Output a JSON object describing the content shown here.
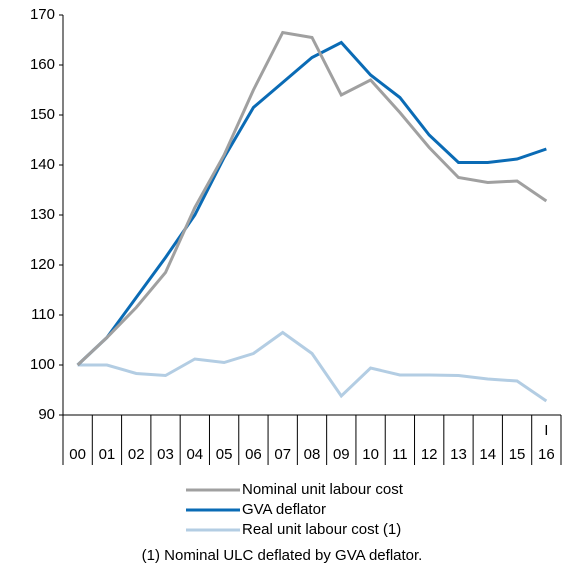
{
  "chart_data": {
    "type": "line",
    "categories": [
      "00",
      "01",
      "02",
      "03",
      "04",
      "05",
      "06",
      "07",
      "08",
      "09",
      "10",
      "11",
      "12",
      "13",
      "14",
      "15",
      "16"
    ],
    "annotations": [
      {
        "text": "I",
        "category": 16
      }
    ],
    "series": [
      {
        "name": "Nominal unit labour cost",
        "color": "#a0a0a0",
        "values": [
          100,
          105.5,
          111.5,
          118.5,
          131.5,
          142,
          155,
          166.5,
          165.5,
          154,
          157,
          150.5,
          143.5,
          137.5,
          136.5,
          136.8,
          132.8
        ]
      },
      {
        "name": "GVA deflator",
        "color": "#0a6bb5",
        "values": [
          100,
          105.5,
          113.5,
          121.5,
          130,
          141.5,
          151.5,
          156.5,
          161.5,
          164.5,
          158,
          153.5,
          146,
          140.5,
          140.5,
          141.2,
          143.2
        ]
      },
      {
        "name": "Real unit labour cost (1)",
        "color": "#b3cde3",
        "values": [
          100,
          100,
          98.3,
          97.9,
          101.2,
          100.5,
          102.3,
          106.5,
          102.3,
          93.8,
          99.4,
          98,
          98,
          97.9,
          97.2,
          96.8,
          92.8
        ]
      }
    ],
    "ylim": [
      90,
      170
    ],
    "yticks": [
      90,
      100,
      110,
      120,
      130,
      140,
      150,
      160,
      170
    ],
    "footnote": "(1) Nominal ULC deflated by GVA deflator."
  }
}
